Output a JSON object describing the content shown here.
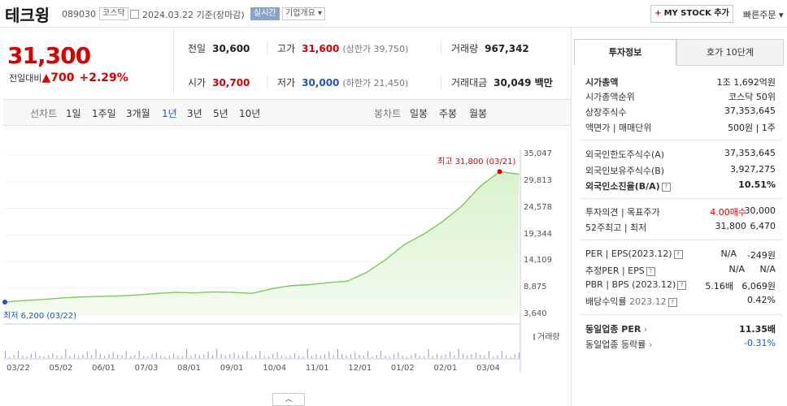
{
  "header": {
    "company": "테크윙",
    "code": "089030",
    "market": "코스닥",
    "date": "2024.03.22",
    "basis": "기준(장마감)",
    "live_label": "실시간",
    "overview_label": "기업개요 ▾",
    "mystock_label": "MY STOCK 추가",
    "quick_order_label": "빠른주문 ▾"
  },
  "price": {
    "current": "31,300",
    "change_label": "전일대비",
    "change_arrow": "▲",
    "change": "700",
    "change_pct": "+2.29%"
  },
  "stats": {
    "prev_label": "전일",
    "prev": "30,600",
    "high_label": "고가",
    "high": "31,600",
    "upper_limit": "(상한가 39,750)",
    "volume_label": "거래량",
    "volume": "967,342",
    "open_label": "시가",
    "open": "30,700",
    "low_label": "저가",
    "low": "30,000",
    "lower_limit": "(하한가 21,450)",
    "amount_label": "거래대금",
    "amount": "30,049 백만"
  },
  "periods": {
    "line_chart": "선차트",
    "items": [
      "1일",
      "1주일",
      "3개월",
      "1년",
      "3년",
      "5년",
      "10년"
    ],
    "selected": "1년",
    "candle_chart": "봉차트",
    "candle_items": [
      "일봉",
      "주봉",
      "월봉"
    ]
  },
  "chart_data": {
    "type": "area",
    "x": [
      "03/22",
      "04/05",
      "04/19",
      "05/02",
      "05/17",
      "06/01",
      "06/16",
      "07/03",
      "07/18",
      "08/01",
      "08/16",
      "09/01",
      "09/15",
      "10/04",
      "10/20",
      "11/01",
      "11/15",
      "12/01",
      "12/15",
      "01/02",
      "01/16",
      "02/01",
      "02/15",
      "03/04",
      "03/13",
      "03/19",
      "03/21",
      "03/22"
    ],
    "values": [
      6200,
      6500,
      6700,
      7000,
      7200,
      7300,
      7400,
      7600,
      7900,
      8100,
      8000,
      8200,
      8100,
      7900,
      8800,
      9400,
      9600,
      10000,
      10300,
      12000,
      14500,
      17500,
      19500,
      22000,
      25000,
      29000,
      31800,
      31300
    ],
    "ylim": [
      3640,
      35047
    ],
    "ytick_labels": [
      "35,047",
      "29,813",
      "24,578",
      "19,344",
      "14,109",
      "8,875",
      "3,640"
    ],
    "xtick_labels": [
      "03/22",
      "05/02",
      "06/01",
      "07/03",
      "08/01",
      "09/01",
      "10/04",
      "11/01",
      "12/01",
      "01/02",
      "02/01",
      "03/04"
    ],
    "high_annotation": "최고 31,800 (03/21)",
    "low_annotation": "최저 6,200 (03/22)",
    "volume_label": "거래량",
    "line_color": "#7cc95a",
    "fill_color": "#d9f2cc"
  },
  "side": {
    "tab_active": "투자정보",
    "tab_inactive": "호가 10단계",
    "market_cap_label": "시가총액",
    "market_cap": "1조 1,692억원",
    "cap_rank_label": "시가총액순위",
    "cap_rank": "코스닥 50위",
    "shares_label": "상장주식수",
    "shares": "37,353,645",
    "par_label": "액면가 | 매매단위",
    "par": "500원 | 1주",
    "foreign_limit_label": "외국인한도주식수(A)",
    "foreign_limit": "37,353,645",
    "foreign_hold_label": "외국인보유주식수(B)",
    "foreign_hold": "3,927,275",
    "foreign_ratio_label": "외국인소진율(B/A)",
    "foreign_ratio": "10.51%",
    "opinion_label": "투자의견 | 목표주가",
    "opinion": "4.00매수",
    "target": "30,000",
    "w52_label": "52주최고 | 최저",
    "w52_high": "31,800",
    "w52_low": "6,470",
    "per_label": "PER | EPS(2023.12)",
    "per": "N/A",
    "eps": "-249원",
    "eper_label": "추정PER | EPS",
    "eper": "N/A",
    "eeps": "N/A",
    "pbr_label": "PBR | BPS (2023.12)",
    "pbr": "5.16배",
    "bps": "6,069원",
    "div_label": "배당수익률",
    "div_year": "2023.12",
    "div": "0.42%",
    "sector_per_label": "동일업종 PER",
    "sector_per": "11.35배",
    "sector_rate_label": "동일업종 등락률",
    "sector_rate": "-0.31%"
  }
}
